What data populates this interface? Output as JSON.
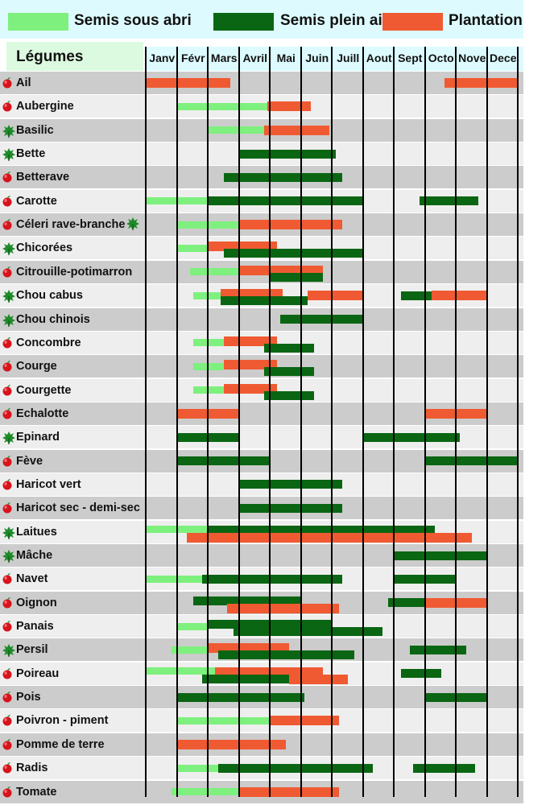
{
  "legend": {
    "sous_abri": "Semis sous abri",
    "plein_air": "Semis plein air",
    "plantation": "Plantation"
  },
  "colors": {
    "sous_abri": "#7ef07e",
    "plein_air": "#0a6612",
    "plantation": "#f05a32",
    "row_dark": "#cccccc",
    "row_light": "#eeeeee",
    "header_bg": "#ddfbff",
    "veg_header_bg": "#dcfadf",
    "apple": "#d8131c",
    "leaf": "#1f8a2a"
  },
  "chart_data": {
    "type": "gantt",
    "title": "",
    "row_header": "Légumes",
    "months": [
      "Janv",
      "Févr",
      "Mars",
      "Avril",
      "Mai",
      "Juin",
      "Juill",
      "Aout",
      "Sept",
      "Octo",
      "Nove",
      "Dece"
    ],
    "series": [
      {
        "key": "sous_abri",
        "name": "Semis sous abri"
      },
      {
        "key": "plein_air",
        "name": "Semis plein air"
      },
      {
        "key": "plantation",
        "name": "Plantation"
      }
    ],
    "rows": [
      {
        "name": "Ail",
        "icon": "apple-icon",
        "bars": [
          {
            "type": "plantation",
            "start": 0.0,
            "end": 2.7
          },
          {
            "type": "plantation",
            "start": 9.6,
            "end": 12.0
          }
        ]
      },
      {
        "name": "Aubergine",
        "icon": "apple-icon",
        "bars": [
          {
            "type": "sous_abri",
            "start": 1.0,
            "end": 3.9
          },
          {
            "type": "plantation",
            "start": 3.9,
            "end": 5.3
          }
        ]
      },
      {
        "name": "Basilic",
        "icon": "leaf-icon",
        "bars": [
          {
            "type": "sous_abri",
            "start": 2.0,
            "end": 3.8
          },
          {
            "type": "plantation",
            "start": 3.8,
            "end": 5.9
          }
        ]
      },
      {
        "name": "Bette",
        "icon": "leaf-icon",
        "bars": [
          {
            "type": "plein_air",
            "start": 3.0,
            "end": 6.1
          }
        ]
      },
      {
        "name": "Betterave",
        "icon": "apple-icon",
        "bars": [
          {
            "type": "plein_air",
            "start": 2.5,
            "end": 6.3
          }
        ]
      },
      {
        "name": "Carotte",
        "icon": "apple-icon",
        "bars": [
          {
            "type": "sous_abri",
            "start": 0.0,
            "end": 2.0
          },
          {
            "type": "plein_air",
            "start": 2.0,
            "end": 7.0
          },
          {
            "type": "plein_air",
            "start": 8.8,
            "end": 10.7
          }
        ]
      },
      {
        "name": "Céleri rave-branche",
        "icon": "apple-icon",
        "icon2": "leaf-icon",
        "bars": [
          {
            "type": "sous_abri",
            "start": 1.0,
            "end": 3.0
          },
          {
            "type": "plantation",
            "start": 3.0,
            "end": 6.3
          }
        ]
      },
      {
        "name": "Chicorées",
        "icon": "leaf-icon",
        "bars": [
          {
            "type": "sous_abri",
            "start": 1.0,
            "end": 2.0
          },
          {
            "type": "plantation",
            "start": 2.0,
            "end": 4.2
          },
          {
            "type": "plein_air",
            "start": 2.5,
            "end": 7.0
          }
        ]
      },
      {
        "name": "Citrouille-potimarron",
        "icon": "apple-icon",
        "bars": [
          {
            "type": "sous_abri",
            "start": 1.4,
            "end": 3.0
          },
          {
            "type": "plantation",
            "start": 3.0,
            "end": 5.7
          },
          {
            "type": "plein_air",
            "start": 4.0,
            "end": 5.7
          }
        ]
      },
      {
        "name": "Chou cabus",
        "icon": "leaf-icon",
        "bars": [
          {
            "type": "sous_abri",
            "start": 1.5,
            "end": 2.4
          },
          {
            "type": "plantation",
            "start": 2.4,
            "end": 4.4
          },
          {
            "type": "plein_air",
            "start": 2.4,
            "end": 5.2
          },
          {
            "type": "plantation",
            "start": 5.2,
            "end": 7.0
          },
          {
            "type": "plein_air",
            "start": 8.2,
            "end": 9.2
          },
          {
            "type": "plantation",
            "start": 9.2,
            "end": 11.0
          }
        ]
      },
      {
        "name": "Chou chinois",
        "icon": "leaf-icon",
        "bars": [
          {
            "type": "plein_air",
            "start": 4.3,
            "end": 7.0
          }
        ]
      },
      {
        "name": "Concombre",
        "icon": "apple-icon",
        "bars": [
          {
            "type": "sous_abri",
            "start": 1.5,
            "end": 2.5
          },
          {
            "type": "plantation",
            "start": 2.5,
            "end": 4.2
          },
          {
            "type": "plein_air",
            "start": 3.8,
            "end": 5.4
          }
        ]
      },
      {
        "name": "Courge",
        "icon": "apple-icon",
        "bars": [
          {
            "type": "sous_abri",
            "start": 1.5,
            "end": 2.5
          },
          {
            "type": "plantation",
            "start": 2.5,
            "end": 4.2
          },
          {
            "type": "plein_air",
            "start": 3.8,
            "end": 5.4
          }
        ]
      },
      {
        "name": "Courgette",
        "icon": "apple-icon",
        "bars": [
          {
            "type": "sous_abri",
            "start": 1.5,
            "end": 2.5
          },
          {
            "type": "plantation",
            "start": 2.5,
            "end": 4.2
          },
          {
            "type": "plein_air",
            "start": 3.8,
            "end": 5.4
          }
        ]
      },
      {
        "name": "Echalotte",
        "icon": "apple-icon",
        "bars": [
          {
            "type": "plantation",
            "start": 1.0,
            "end": 3.0
          },
          {
            "type": "plantation",
            "start": 9.0,
            "end": 11.0
          }
        ]
      },
      {
        "name": "Epinard",
        "icon": "leaf-icon",
        "bars": [
          {
            "type": "plein_air",
            "start": 1.0,
            "end": 3.0
          },
          {
            "type": "plein_air",
            "start": 7.0,
            "end": 10.1
          }
        ]
      },
      {
        "name": "Fève",
        "icon": "apple-icon",
        "bars": [
          {
            "type": "plein_air",
            "start": 1.0,
            "end": 4.0
          },
          {
            "type": "plein_air",
            "start": 9.0,
            "end": 12.0
          }
        ]
      },
      {
        "name": "Haricot vert",
        "icon": "apple-icon",
        "bars": [
          {
            "type": "plein_air",
            "start": 3.0,
            "end": 6.3
          }
        ]
      },
      {
        "name": "Haricot sec - demi-sec",
        "icon": "apple-icon",
        "bars": [
          {
            "type": "plein_air",
            "start": 3.0,
            "end": 6.3
          }
        ]
      },
      {
        "name": "Laitues",
        "icon": "leaf-icon",
        "bars": [
          {
            "type": "sous_abri",
            "start": 0.0,
            "end": 2.0
          },
          {
            "type": "plein_air",
            "start": 2.0,
            "end": 9.3
          },
          {
            "type": "plantation",
            "start": 1.3,
            "end": 10.5
          }
        ]
      },
      {
        "name": "Mâche",
        "icon": "leaf-icon",
        "bars": [
          {
            "type": "plein_air",
            "start": 8.0,
            "end": 11.0
          }
        ]
      },
      {
        "name": "Navet",
        "icon": "apple-icon",
        "bars": [
          {
            "type": "sous_abri",
            "start": 0.0,
            "end": 1.8
          },
          {
            "type": "plein_air",
            "start": 1.8,
            "end": 6.3
          },
          {
            "type": "plein_air",
            "start": 8.0,
            "end": 10.0
          }
        ]
      },
      {
        "name": "Oignon",
        "icon": "apple-icon",
        "bars": [
          {
            "type": "plein_air",
            "start": 1.5,
            "end": 5.0
          },
          {
            "type": "plantation",
            "start": 2.6,
            "end": 6.2
          },
          {
            "type": "plein_air",
            "start": 7.8,
            "end": 9.0
          },
          {
            "type": "plantation",
            "start": 9.0,
            "end": 11.0
          }
        ]
      },
      {
        "name": "Panais",
        "icon": "apple-icon",
        "bars": [
          {
            "type": "sous_abri",
            "start": 1.0,
            "end": 2.0
          },
          {
            "type": "plein_air",
            "start": 2.0,
            "end": 6.0
          },
          {
            "type": "plein_air",
            "start": 2.8,
            "end": 7.6
          }
        ]
      },
      {
        "name": "Persil",
        "icon": "leaf-icon",
        "bars": [
          {
            "type": "sous_abri",
            "start": 0.8,
            "end": 2.0
          },
          {
            "type": "plantation",
            "start": 2.0,
            "end": 4.6
          },
          {
            "type": "plein_air",
            "start": 2.3,
            "end": 6.7
          },
          {
            "type": "plein_air",
            "start": 8.5,
            "end": 10.3
          }
        ]
      },
      {
        "name": "Poireau",
        "icon": "apple-icon",
        "bars": [
          {
            "type": "sous_abri",
            "start": 0.0,
            "end": 2.2
          },
          {
            "type": "plantation",
            "start": 2.2,
            "end": 5.7
          },
          {
            "type": "plein_air",
            "start": 1.8,
            "end": 4.6
          },
          {
            "type": "plantation",
            "start": 4.6,
            "end": 6.5
          },
          {
            "type": "plein_air",
            "start": 8.2,
            "end": 9.5
          }
        ]
      },
      {
        "name": "Pois",
        "icon": "apple-icon",
        "bars": [
          {
            "type": "plein_air",
            "start": 1.0,
            "end": 5.1
          },
          {
            "type": "plein_air",
            "start": 9.0,
            "end": 11.0
          }
        ]
      },
      {
        "name": "Poivron - piment",
        "icon": "apple-icon",
        "bars": [
          {
            "type": "sous_abri",
            "start": 1.0,
            "end": 4.0
          },
          {
            "type": "plantation",
            "start": 4.0,
            "end": 6.2
          }
        ]
      },
      {
        "name": "Pomme de terre",
        "icon": "apple-icon",
        "bars": [
          {
            "type": "plantation",
            "start": 1.0,
            "end": 4.5
          }
        ]
      },
      {
        "name": "Radis",
        "icon": "apple-icon",
        "bars": [
          {
            "type": "sous_abri",
            "start": 1.0,
            "end": 2.3
          },
          {
            "type": "plein_air",
            "start": 2.3,
            "end": 7.3
          },
          {
            "type": "plein_air",
            "start": 8.6,
            "end": 10.6
          }
        ]
      },
      {
        "name": "Tomate",
        "icon": "apple-icon",
        "bars": [
          {
            "type": "sous_abri",
            "start": 0.8,
            "end": 3.0
          },
          {
            "type": "plantation",
            "start": 3.0,
            "end": 6.2
          }
        ]
      }
    ]
  }
}
